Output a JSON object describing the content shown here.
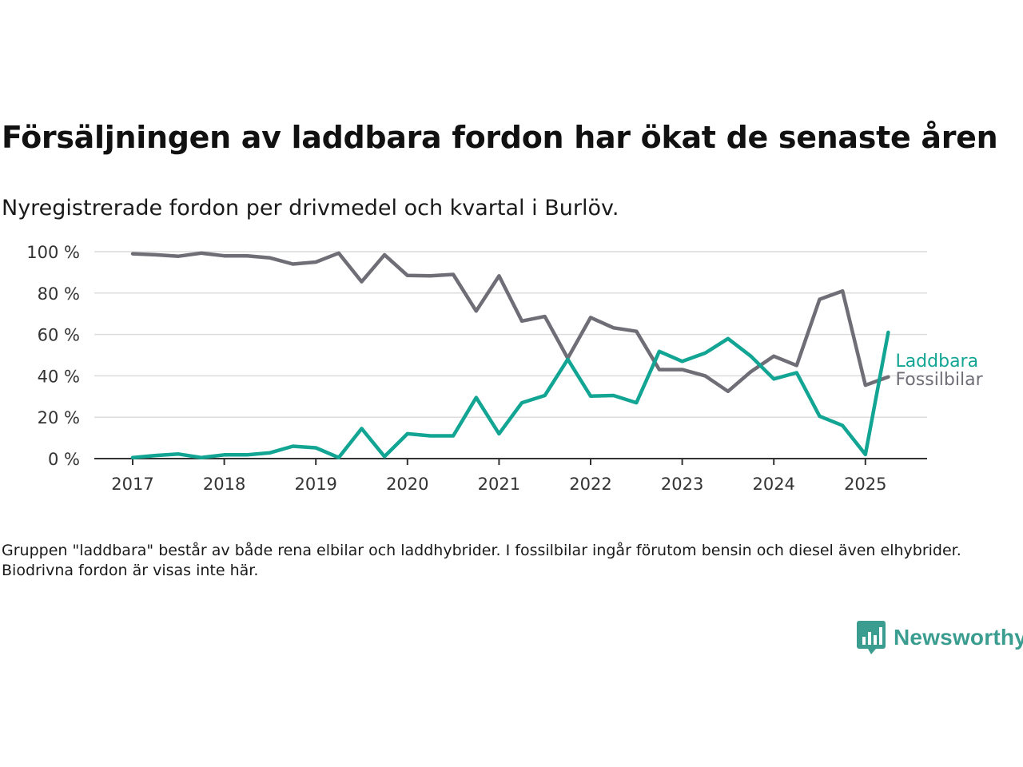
{
  "header": {
    "title": "Försäljningen av laddbara fordon har ökat de senaste åren",
    "subtitle": "Nyregistrerade fordon per drivmedel och kvartal i Burlöv."
  },
  "footnote": "Gruppen \"laddbara\" består av både rena elbilar och laddhybrider. I fossilbilar ingår förutom bensin och diesel även elhybrider. Biodrivna fordon är visas inte här.",
  "brand": {
    "name": "Newsworthy",
    "color": "#3a9d8f",
    "icon": "newsworthy-logo-icon"
  },
  "chart_data": {
    "type": "line",
    "title": "Försäljningen av laddbara fordon har ökat de senaste åren",
    "subtitle": "Nyregistrerade fordon per drivmedel och kvartal i Burlöv.",
    "xlabel": "",
    "ylabel": "",
    "ylim": [
      0,
      100
    ],
    "yticks": [
      0,
      20,
      40,
      60,
      80,
      100
    ],
    "ytick_labels": [
      "0 %",
      "20 %",
      "40 %",
      "60 %",
      "80 %",
      "100 %"
    ],
    "xticks": [
      "2017",
      "2018",
      "2019",
      "2020",
      "2021",
      "2022",
      "2023",
      "2024",
      "2025"
    ],
    "grid": true,
    "legend": "direct labels at line ends (right)",
    "x": [
      "2017-Q1",
      "2017-Q2",
      "2017-Q3",
      "2017-Q4",
      "2018-Q1",
      "2018-Q2",
      "2018-Q3",
      "2018-Q4",
      "2019-Q1",
      "2019-Q2",
      "2019-Q3",
      "2019-Q4",
      "2020-Q1",
      "2020-Q2",
      "2020-Q3",
      "2020-Q4",
      "2021-Q1",
      "2021-Q2",
      "2021-Q3",
      "2021-Q4",
      "2022-Q1",
      "2022-Q2",
      "2022-Q3",
      "2022-Q4",
      "2023-Q1",
      "2023-Q2",
      "2023-Q3",
      "2023-Q4",
      "2024-Q1",
      "2024-Q2",
      "2024-Q3",
      "2024-Q4",
      "2025-Q1",
      "2025-Q2"
    ],
    "series": [
      {
        "name": "Laddbara",
        "color": "#12a594",
        "values": [
          0.5,
          1.5,
          2.2,
          0.5,
          1.8,
          1.8,
          2.8,
          6,
          5.2,
          0.5,
          14.5,
          1,
          12,
          11,
          11,
          29.5,
          12,
          27,
          30.5,
          48,
          30.2,
          30.5,
          27,
          51.8,
          47,
          51,
          58,
          49.5,
          38.5,
          41.5,
          20.5,
          16,
          2,
          61
        ]
      },
      {
        "name": "Fossilbilar",
        "color": "#6f6e77",
        "values": [
          99,
          98.5,
          97.8,
          99.3,
          98,
          98,
          97,
          94,
          95,
          99.3,
          85.5,
          98.5,
          88.5,
          88.3,
          89,
          71.3,
          88.3,
          66.5,
          68.7,
          48.5,
          68.2,
          63.2,
          61.5,
          43,
          43,
          40,
          32.5,
          42,
          49.5,
          45,
          77,
          81,
          35.5,
          39.5
        ]
      }
    ]
  }
}
